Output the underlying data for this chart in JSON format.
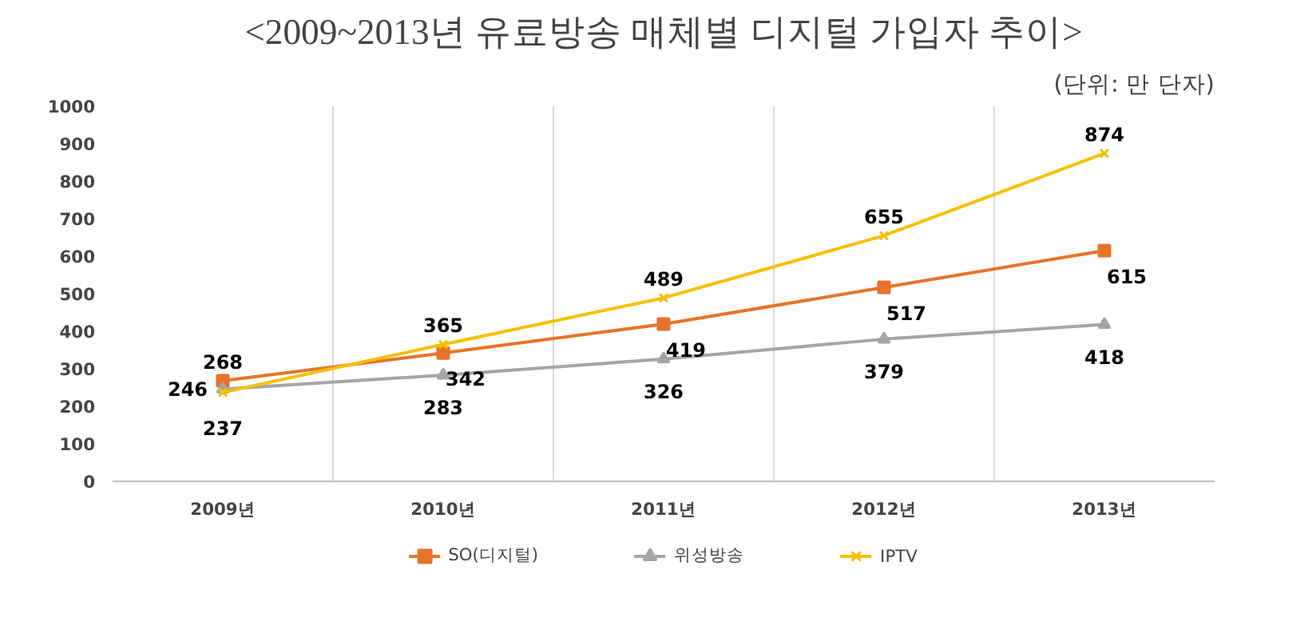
{
  "chart_data": {
    "type": "line",
    "title": "<2009~2013년 유료방송 매체별 디지털 가입자 추이>",
    "annotations": [
      "(단위: 만 단자)"
    ],
    "categories": [
      "2009년",
      "2010년",
      "2011년",
      "2012년",
      "2013년"
    ],
    "series": [
      {
        "name": "SO(디지털)",
        "color": "#e8732a",
        "marker": "square",
        "values": [
          268,
          342,
          419,
          517,
          615
        ]
      },
      {
        "name": "위성방송",
        "color": "#a5a5a5",
        "marker": "triangle",
        "values": [
          246,
          283,
          326,
          379,
          418
        ]
      },
      {
        "name": "IPTV",
        "color": "#f5c000",
        "marker": "cross",
        "values": [
          237,
          365,
          489,
          655,
          874
        ]
      }
    ],
    "ylim": [
      0,
      1000
    ],
    "yticks": [
      0,
      100,
      200,
      300,
      400,
      500,
      600,
      700,
      800,
      900,
      1000
    ],
    "grid": "x",
    "legend": "bottom",
    "data_labels": true,
    "line_style": "solid"
  }
}
